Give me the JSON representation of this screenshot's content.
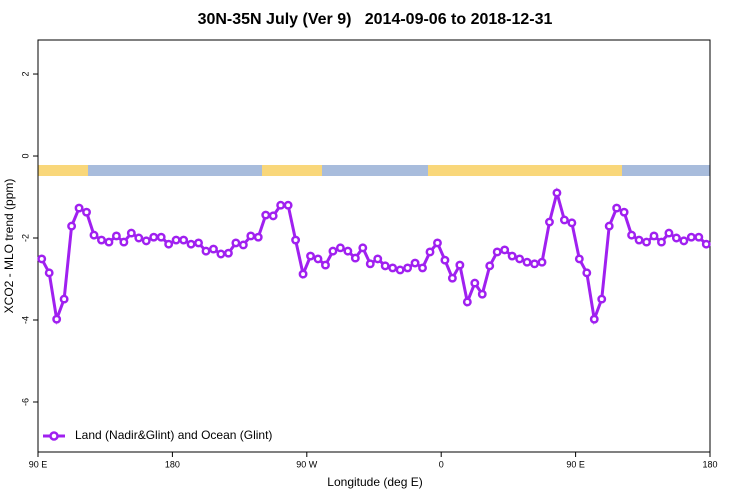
{
  "chart_data": {
    "type": "line",
    "title": "30N-35N July (Ver 9)   2014-09-06 to 2018-12-31",
    "xlabel": "Longitude (deg E)",
    "ylabel": "XCO2 - MLO trend (ppm)",
    "xlim": [
      90,
      540
    ],
    "ylim": [
      -7.22,
      2.83
    ],
    "xticks": [
      {
        "value": 90,
        "label": "90 E"
      },
      {
        "value": 180,
        "label": "180"
      },
      {
        "value": 270,
        "label": "90 W"
      },
      {
        "value": 360,
        "label": "0"
      },
      {
        "value": 450,
        "label": "90 E"
      },
      {
        "value": 540,
        "label": "180"
      }
    ],
    "yticks": [
      -6,
      -4,
      -2,
      0,
      2
    ],
    "legend": "bottom-left",
    "x": [
      92.5,
      97.5,
      102.5,
      107.5,
      112.5,
      117.5,
      122.5,
      127.5,
      132.5,
      137.5,
      142.5,
      147.5,
      152.5,
      157.5,
      162.5,
      167.5,
      172.5,
      177.5,
      182.5,
      187.5,
      192.5,
      197.5,
      202.5,
      207.5,
      212.5,
      217.5,
      222.5,
      227.5,
      232.5,
      237.5,
      242.5,
      247.5,
      252.5,
      257.5,
      262.5,
      267.5,
      272.5,
      277.5,
      282.5,
      287.5,
      292.5,
      297.5,
      302.5,
      307.5,
      312.5,
      317.5,
      322.5,
      327.5,
      332.5,
      337.5,
      342.5,
      347.5,
      352.5,
      357.5,
      362.5,
      367.5,
      372.5,
      377.5,
      382.5,
      387.5,
      392.5,
      397.5,
      402.5,
      407.5,
      412.5,
      417.5,
      422.5,
      427.5,
      432.5,
      437.5,
      442.5,
      447.5,
      452.5,
      457.5,
      462.5,
      467.5,
      472.5,
      477.5,
      482.5,
      487.5,
      492.5,
      497.5,
      502.5,
      507.5,
      512.5,
      517.5,
      522.5,
      527.5,
      532.5,
      537.5
    ],
    "series": [
      {
        "name": "Land (Nadir&Glint) and Ocean (Glint)",
        "color": "#a020f0",
        "values": [
          -2.51,
          -2.85,
          -3.98,
          -3.49,
          -1.71,
          -1.27,
          -1.37,
          -1.93,
          -2.05,
          -2.1,
          -1.95,
          -2.1,
          -1.88,
          -2.0,
          -2.07,
          -1.98,
          -1.98,
          -2.15,
          -2.05,
          -2.05,
          -2.15,
          -2.12,
          -2.32,
          -2.27,
          -2.39,
          -2.37,
          -2.12,
          -2.17,
          -1.95,
          -1.98,
          -1.44,
          -1.46,
          -1.2,
          -1.2,
          -2.05,
          -2.88,
          -2.44,
          -2.51,
          -2.66,
          -2.32,
          -2.24,
          -2.32,
          -2.49,
          -2.24,
          -2.63,
          -2.51,
          -2.68,
          -2.73,
          -2.78,
          -2.73,
          -2.61,
          -2.73,
          -2.34,
          -2.12,
          -2.54,
          -2.98,
          -2.66,
          -3.56,
          -3.1,
          -3.37,
          -2.68,
          -2.34,
          -2.29,
          -2.44,
          -2.51,
          -2.59,
          -2.63,
          -2.59,
          -1.61,
          -0.9,
          -1.56,
          -1.63,
          -2.51,
          -2.85,
          -3.98,
          -3.49,
          -1.71,
          -1.27,
          -1.37,
          -1.93,
          -2.05,
          -2.1,
          -1.95,
          -2.1,
          -1.88,
          -2.0,
          -2.07,
          -1.98,
          -1.98,
          -2.15
        ]
      }
    ]
  }
}
